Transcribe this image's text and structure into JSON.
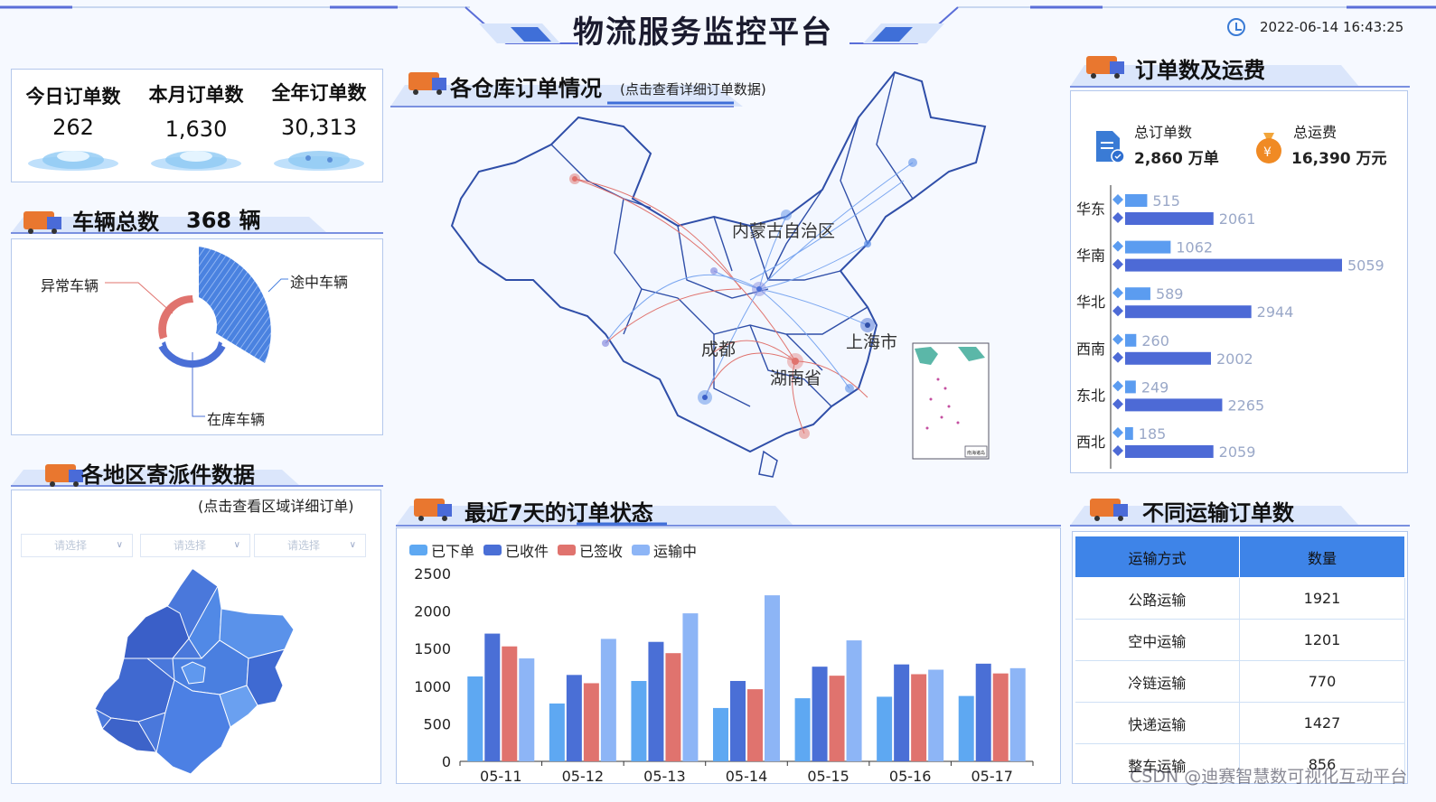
{
  "header": {
    "title": "物流服务监控平台",
    "datetime": "2022-06-14 16:43:25"
  },
  "orders_summary": {
    "items": [
      {
        "label": "今日订单数",
        "value": "262"
      },
      {
        "label": "本月订单数",
        "value": "1,630"
      },
      {
        "label": "全年订单数",
        "value": "30,313"
      }
    ]
  },
  "vehicles": {
    "title": "车辆总数",
    "total": "368 辆",
    "segments": [
      {
        "label": "途中车辆"
      },
      {
        "label": "异常车辆"
      },
      {
        "label": "在库车辆"
      }
    ]
  },
  "warehouse": {
    "title": "各仓库订单情况",
    "subtitle": "(点击查看详细订单数据)",
    "map_labels": [
      "内蒙古自治区",
      "上海市",
      "成都",
      "湖南省"
    ],
    "inset_label": "南海诸岛"
  },
  "regional": {
    "title": "各地区寄派件数据",
    "subtitle": "(点击查看区域详细订单)",
    "selects": [
      "请选择",
      "请选择",
      "请选择"
    ]
  },
  "orders_fees": {
    "title": "订单数及运费",
    "total_orders_label": "总订单数",
    "total_orders_value": "2,860 万单",
    "total_fee_label": "总运费",
    "total_fee_value": "16,390 万元",
    "colors": {
      "orders": "#5b9cf0",
      "fees": "#4d6ad6"
    }
  },
  "chart_data": [
    {
      "type": "bar",
      "orientation": "horizontal",
      "categories": [
        "华东",
        "华南",
        "华北",
        "西南",
        "东北",
        "西北"
      ],
      "series": [
        {
          "values": [
            515,
            1062,
            589,
            260,
            249,
            185
          ]
        },
        {
          "values": [
            2061,
            5059,
            2944,
            2002,
            2265,
            2059
          ]
        }
      ]
    },
    {
      "type": "bar",
      "title": "最近7天的订单状态",
      "categories": [
        "05-11",
        "05-12",
        "05-13",
        "05-14",
        "05-15",
        "05-16",
        "05-17"
      ],
      "series": [
        {
          "name": "已下单",
          "color": "#5ea8f2",
          "values": [
            1130,
            770,
            1070,
            710,
            840,
            860,
            870
          ]
        },
        {
          "name": "已收件",
          "color": "#4a6fd6",
          "values": [
            1700,
            1150,
            1590,
            1070,
            1260,
            1290,
            1300
          ]
        },
        {
          "name": "已签收",
          "color": "#e0736e",
          "values": [
            1530,
            1040,
            1440,
            960,
            1140,
            1160,
            1170
          ]
        },
        {
          "name": "运输中",
          "color": "#8db5f6",
          "values": [
            1370,
            1630,
            1970,
            2210,
            1610,
            1220,
            1240
          ]
        }
      ],
      "ylim": [
        0,
        2500
      ],
      "yticks": [
        "0",
        "500",
        "1000",
        "1500",
        "2000",
        "2500"
      ],
      "legend": "top-left",
      "grid": false
    }
  ],
  "transport": {
    "title": "不同运输订单数",
    "headers": [
      "运输方式",
      "数量"
    ],
    "rows": [
      [
        "公路运输",
        "1921"
      ],
      [
        "空中运输",
        "1201"
      ],
      [
        "冷链运输",
        "770"
      ],
      [
        "快递运输",
        "1427"
      ],
      [
        "整车运输",
        "856"
      ]
    ]
  },
  "watermark": "CSDN @迪赛智慧数可视化互动平台"
}
